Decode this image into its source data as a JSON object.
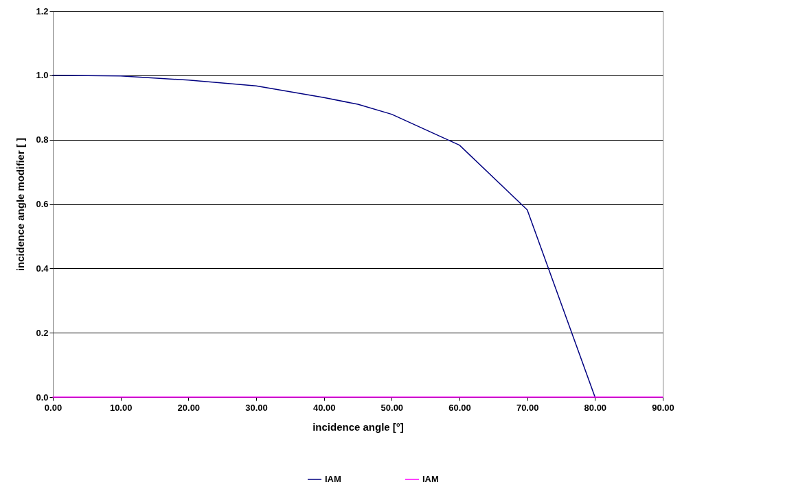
{
  "chart_data": {
    "type": "line",
    "xlabel": "incidence angle [°]",
    "ylabel": "incidence angle modifier [ ]",
    "x": [
      0,
      10,
      20,
      25,
      30,
      40,
      45,
      50,
      60,
      70,
      80,
      90
    ],
    "series": [
      {
        "name": "IAM",
        "color": "#000080",
        "values": [
          1.0,
          0.998,
          0.985,
          0.976,
          0.967,
          0.931,
          0.91,
          0.879,
          0.783,
          0.582,
          0,
          null
        ]
      },
      {
        "name": "IAM",
        "color": "#ff00ff",
        "values": [
          0,
          0,
          0,
          0,
          0,
          0,
          0,
          0,
          0,
          0,
          0,
          0
        ]
      }
    ],
    "xlim": [
      0,
      90
    ],
    "xticks": [
      {
        "value": 0,
        "label": "0.00"
      },
      {
        "value": 10,
        "label": "10.00"
      },
      {
        "value": 20,
        "label": "20.00"
      },
      {
        "value": 30,
        "label": "30.00"
      },
      {
        "value": 40,
        "label": "40.00"
      },
      {
        "value": 50,
        "label": "50.00"
      },
      {
        "value": 60,
        "label": "60.00"
      },
      {
        "value": 70,
        "label": "70.00"
      },
      {
        "value": 80,
        "label": "80.00"
      },
      {
        "value": 90,
        "label": "90.00"
      }
    ],
    "ylim": [
      0,
      1.2
    ],
    "yticks": [
      {
        "value": 0,
        "label": "0.0"
      },
      {
        "value": 0.2,
        "label": "0.2"
      },
      {
        "value": 0.4,
        "label": "0.4"
      },
      {
        "value": 0.6,
        "label": "0.6"
      },
      {
        "value": 0.8,
        "label": "0.8"
      },
      {
        "value": 1.0,
        "label": "1.0"
      },
      {
        "value": 1.2,
        "label": "1.2"
      }
    ],
    "grid": "y",
    "legend": "bottom",
    "marker": "none",
    "line_style": "solid"
  }
}
